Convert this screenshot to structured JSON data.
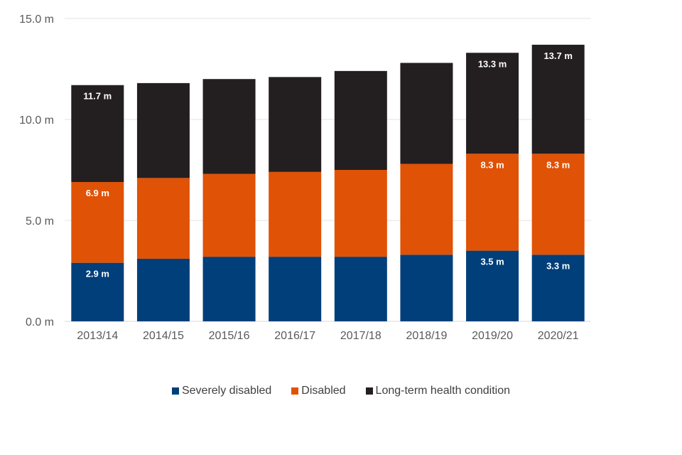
{
  "chart_data": {
    "type": "bar",
    "stacked": true,
    "categories": [
      "2013/14",
      "2014/15",
      "2015/16",
      "2016/17",
      "2017/18",
      "2018/19",
      "2019/20",
      "2020/21"
    ],
    "series": [
      {
        "name": "Severely disabled",
        "color": "#003f7a",
        "values": [
          2.9,
          3.1,
          3.2,
          3.2,
          3.2,
          3.3,
          3.5,
          3.3
        ]
      },
      {
        "name": "Disabled",
        "color": "#e05206",
        "values": [
          4.0,
          4.0,
          4.1,
          4.2,
          4.3,
          4.5,
          4.8,
          5.0
        ]
      },
      {
        "name": "Long-term health condition",
        "color": "#231f20",
        "values": [
          4.8,
          4.7,
          4.7,
          4.7,
          4.9,
          5.0,
          5.0,
          5.4
        ]
      }
    ],
    "data_labels": [
      {
        "category": "2013/14",
        "series": 0,
        "text": "2.9 m"
      },
      {
        "category": "2013/14",
        "series": 1,
        "text": "6.9 m"
      },
      {
        "category": "2013/14",
        "series": 2,
        "text": "11.7 m"
      },
      {
        "category": "2019/20",
        "series": 0,
        "text": "3.5 m"
      },
      {
        "category": "2019/20",
        "series": 1,
        "text": "8.3 m"
      },
      {
        "category": "2019/20",
        "series": 2,
        "text": "13.3 m"
      },
      {
        "category": "2020/21",
        "series": 0,
        "text": "3.3 m"
      },
      {
        "category": "2020/21",
        "series": 1,
        "text": "8.3 m"
      },
      {
        "category": "2020/21",
        "series": 2,
        "text": "13.7 m"
      }
    ],
    "yticks": [
      {
        "value": 0,
        "label": "0.0 m"
      },
      {
        "value": 5,
        "label": "5.0 m"
      },
      {
        "value": 10,
        "label": "10.0 m"
      },
      {
        "value": 15,
        "label": "15.0 m"
      }
    ],
    "ylim": [
      0,
      15
    ],
    "grid": true,
    "legend_position": "bottom",
    "title": "",
    "xlabel": "",
    "ylabel": ""
  }
}
